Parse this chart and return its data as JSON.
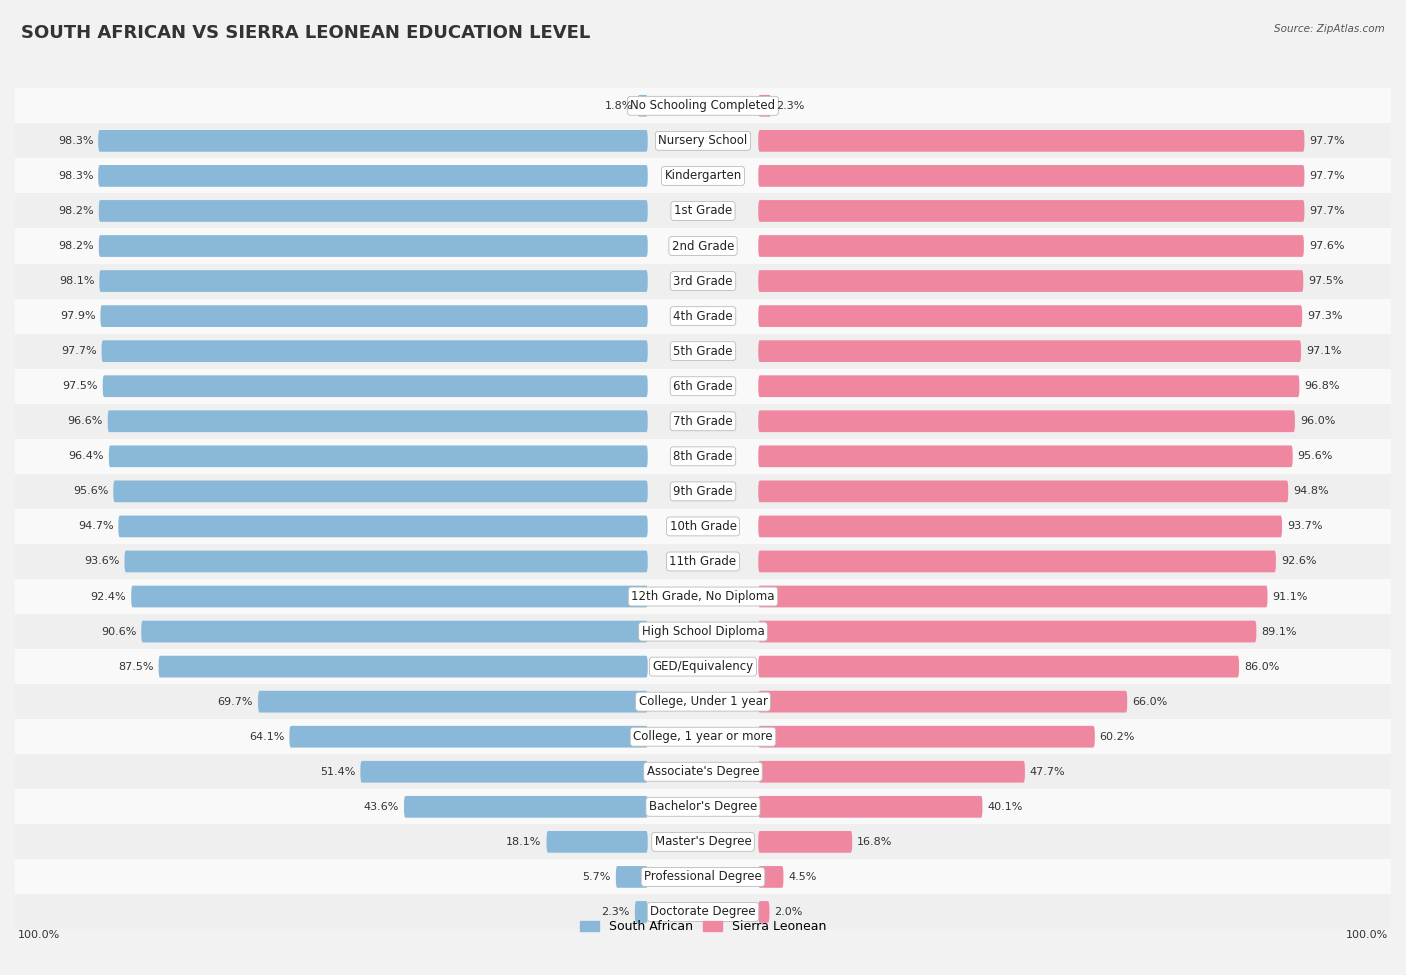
{
  "title": "SOUTH AFRICAN VS SIERRA LEONEAN EDUCATION LEVEL",
  "source": "Source: ZipAtlas.com",
  "categories": [
    "No Schooling Completed",
    "Nursery School",
    "Kindergarten",
    "1st Grade",
    "2nd Grade",
    "3rd Grade",
    "4th Grade",
    "5th Grade",
    "6th Grade",
    "7th Grade",
    "8th Grade",
    "9th Grade",
    "10th Grade",
    "11th Grade",
    "12th Grade, No Diploma",
    "High School Diploma",
    "GED/Equivalency",
    "College, Under 1 year",
    "College, 1 year or more",
    "Associate's Degree",
    "Bachelor's Degree",
    "Master's Degree",
    "Professional Degree",
    "Doctorate Degree"
  ],
  "south_african": [
    1.8,
    98.3,
    98.3,
    98.2,
    98.2,
    98.1,
    97.9,
    97.7,
    97.5,
    96.6,
    96.4,
    95.6,
    94.7,
    93.6,
    92.4,
    90.6,
    87.5,
    69.7,
    64.1,
    51.4,
    43.6,
    18.1,
    5.7,
    2.3
  ],
  "sierra_leonean": [
    2.3,
    97.7,
    97.7,
    97.7,
    97.6,
    97.5,
    97.3,
    97.1,
    96.8,
    96.0,
    95.6,
    94.8,
    93.7,
    92.6,
    91.1,
    89.1,
    86.0,
    66.0,
    60.2,
    47.7,
    40.1,
    16.8,
    4.5,
    2.0
  ],
  "sa_color": "#89b8d8",
  "sl_color": "#f087a0",
  "row_bg_light": "#f9f9f9",
  "row_bg_dark": "#efefef",
  "title_fontsize": 13,
  "label_fontsize": 8.5,
  "value_fontsize": 8.0,
  "legend_sa": "South African",
  "legend_sl": "Sierra Leonean"
}
